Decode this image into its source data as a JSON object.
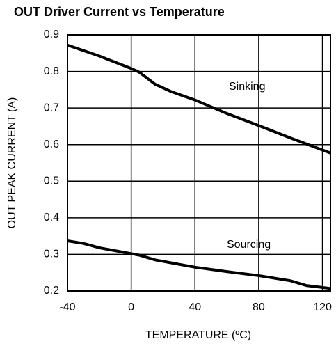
{
  "chart_data": {
    "type": "line",
    "title": "OUT Driver Current vs Temperature",
    "xlabel": "TEMPERATURE (ºC)",
    "ylabel": "OUT PEAK CURRENT (A)",
    "xlim": [
      -40,
      125
    ],
    "xticks": [
      -40,
      0,
      40,
      80,
      120
    ],
    "ylim": [
      0.2,
      0.9
    ],
    "yticks": [
      0.2,
      0.3,
      0.4,
      0.5,
      0.6,
      0.7,
      0.8,
      0.9
    ],
    "grid": true,
    "series": [
      {
        "name": "Sinking",
        "color": "#000000",
        "x": [
          -40,
          -20,
          0,
          5,
          15,
          25,
          40,
          60,
          80,
          100,
          125
        ],
        "values": [
          0.872,
          0.842,
          0.808,
          0.798,
          0.765,
          0.745,
          0.722,
          0.685,
          0.652,
          0.618,
          0.577
        ]
      },
      {
        "name": "Sourcing",
        "color": "#000000",
        "x": [
          -40,
          -30,
          -20,
          0,
          5,
          15,
          40,
          60,
          80,
          100,
          110,
          125
        ],
        "values": [
          0.337,
          0.33,
          0.318,
          0.302,
          0.298,
          0.285,
          0.265,
          0.253,
          0.242,
          0.228,
          0.215,
          0.207
        ]
      }
    ]
  }
}
